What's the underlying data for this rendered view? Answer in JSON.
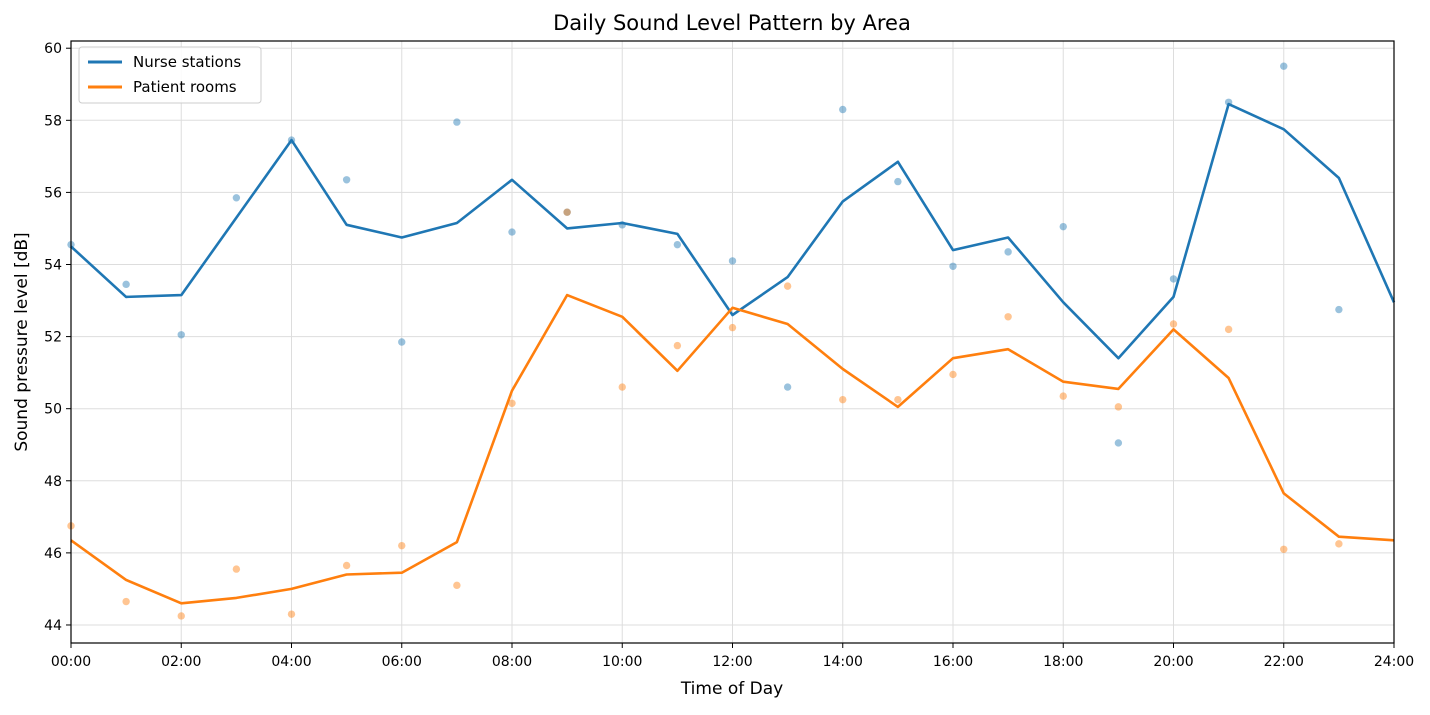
{
  "chart_data": {
    "type": "line",
    "title": "Daily Sound Level Pattern by Area",
    "xlabel": "Time of Day",
    "ylabel": "Sound pressure level [dB]",
    "xlim": [
      0,
      24
    ],
    "ylim": [
      43.5,
      60.2
    ],
    "x_ticks": [
      "00:00",
      "02:00",
      "04:00",
      "06:00",
      "08:00",
      "10:00",
      "12:00",
      "14:00",
      "16:00",
      "18:00",
      "20:00",
      "22:00",
      "24:00"
    ],
    "y_ticks": [
      "44",
      "46",
      "48",
      "50",
      "52",
      "54",
      "56",
      "58",
      "60"
    ],
    "grid": true,
    "legend_position": "top-left",
    "series": [
      {
        "name": "Nurse stations",
        "color": "#1f77b4",
        "line": {
          "x": [
            0,
            1,
            2,
            3,
            4,
            5,
            6,
            7,
            8,
            9,
            10,
            11,
            12,
            13,
            14,
            15,
            16,
            17,
            18,
            19,
            20,
            21,
            22,
            23,
            24
          ],
          "y": [
            54.5,
            53.1,
            53.15,
            55.3,
            57.45,
            55.1,
            54.75,
            55.15,
            56.35,
            55.0,
            55.15,
            54.85,
            52.6,
            53.65,
            55.75,
            56.85,
            54.4,
            54.75,
            52.95,
            51.4,
            53.1,
            58.45,
            57.75,
            56.4,
            52.95
          ]
        },
        "points": {
          "x": [
            0,
            1,
            2,
            3,
            4,
            5,
            6,
            7,
            8,
            9,
            10,
            11,
            12,
            13,
            14,
            15,
            16,
            17,
            18,
            19,
            20,
            21,
            22,
            23
          ],
          "y": [
            54.55,
            53.45,
            52.05,
            55.85,
            57.45,
            56.35,
            51.85,
            57.95,
            54.9,
            55.45,
            55.1,
            54.55,
            54.1,
            50.6,
            58.3,
            56.3,
            53.95,
            54.35,
            55.05,
            49.05,
            53.6,
            58.5,
            59.5,
            52.75
          ]
        }
      },
      {
        "name": "Patient rooms",
        "color": "#ff7f0e",
        "line": {
          "x": [
            0,
            1,
            2,
            3,
            4,
            5,
            6,
            7,
            8,
            9,
            10,
            11,
            12,
            13,
            14,
            15,
            16,
            17,
            18,
            19,
            20,
            21,
            22,
            23,
            24
          ],
          "y": [
            46.35,
            45.25,
            44.6,
            44.75,
            45.0,
            45.4,
            45.45,
            46.3,
            50.5,
            53.15,
            52.55,
            51.05,
            52.8,
            52.35,
            51.1,
            50.05,
            51.4,
            51.65,
            50.75,
            50.55,
            52.2,
            50.85,
            47.65,
            46.45,
            46.35
          ]
        },
        "points": {
          "x": [
            0,
            1,
            2,
            3,
            4,
            5,
            6,
            7,
            8,
            9,
            10,
            11,
            12,
            13,
            14,
            15,
            16,
            17,
            18,
            19,
            20,
            21,
            22,
            23
          ],
          "y": [
            46.75,
            44.65,
            44.25,
            45.55,
            44.3,
            45.65,
            46.2,
            45.1,
            50.15,
            55.45,
            50.6,
            51.75,
            52.25,
            53.4,
            50.25,
            50.25,
            50.95,
            52.55,
            50.35,
            50.05,
            52.35,
            52.2,
            46.1,
            46.25
          ]
        }
      }
    ]
  }
}
